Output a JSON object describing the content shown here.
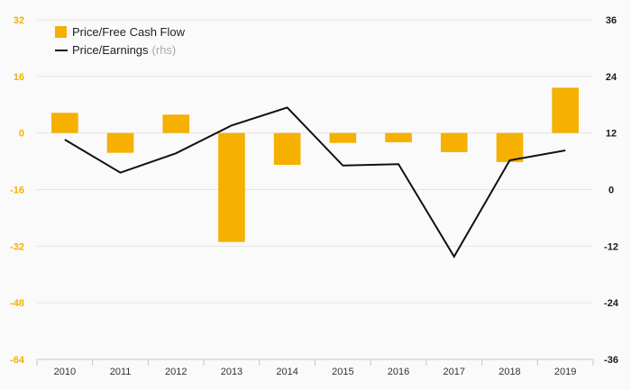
{
  "chart_data": {
    "type": "bar",
    "categories": [
      "2010",
      "2011",
      "2012",
      "2013",
      "2014",
      "2015",
      "2016",
      "2017",
      "2018",
      "2019"
    ],
    "series": [
      {
        "name": "Price/Free Cash Flow",
        "type": "bar",
        "axis": "left",
        "color": "#f5b000",
        "values": [
          5.7,
          -5.6,
          5.2,
          -30.8,
          -9.0,
          -2.8,
          -2.6,
          -5.4,
          -8.2,
          12.8
        ]
      },
      {
        "name": "Price/Earnings",
        "type": "line",
        "axis": "right",
        "color": "#111111",
        "values": [
          10.6,
          3.6,
          7.7,
          13.6,
          17.4,
          5.1,
          5.4,
          -14.2,
          6.2,
          8.3
        ]
      }
    ],
    "legend_suffix_line": "(rhs)",
    "y_left": {
      "ticks": [
        "32",
        "16",
        "0",
        "-16",
        "-32",
        "-48",
        "-64"
      ],
      "ylim": [
        -64,
        32
      ],
      "color": "#f5b000"
    },
    "y_right": {
      "ticks": [
        "36",
        "24",
        "12",
        "0",
        "-12",
        "-24",
        "-36"
      ],
      "ylim": [
        -36,
        36
      ],
      "color": "#1a1a1a"
    },
    "grid": true,
    "legend_position": "top-left",
    "title": "",
    "xlabel": "",
    "ylabel": ""
  }
}
